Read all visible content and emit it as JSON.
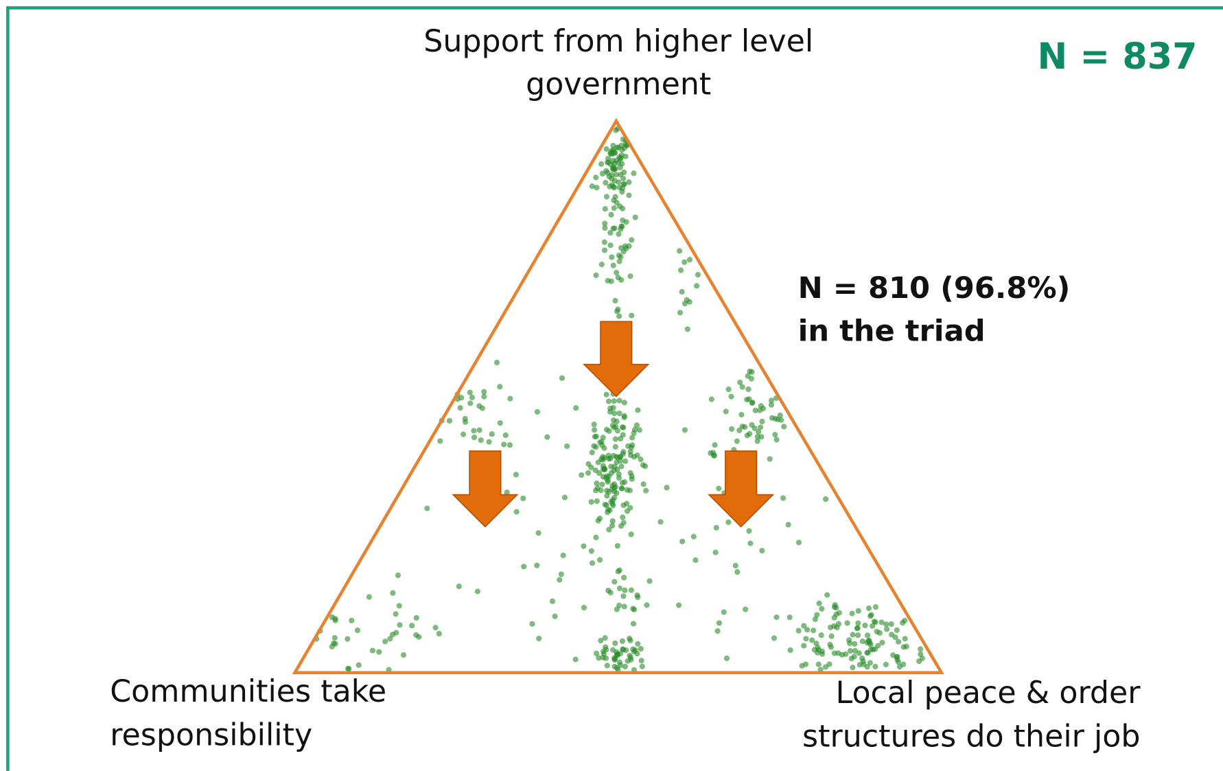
{
  "total": "N = 837",
  "annotation": [
    "N = 810 (96.8%)",
    "in the triad"
  ],
  "labels": {
    "top": [
      "Support from higher level",
      "government"
    ],
    "bottom_left": [
      "Communities take",
      "responsibility"
    ],
    "bottom_right": [
      "Local peace & order",
      "structures do their job"
    ]
  }
}
